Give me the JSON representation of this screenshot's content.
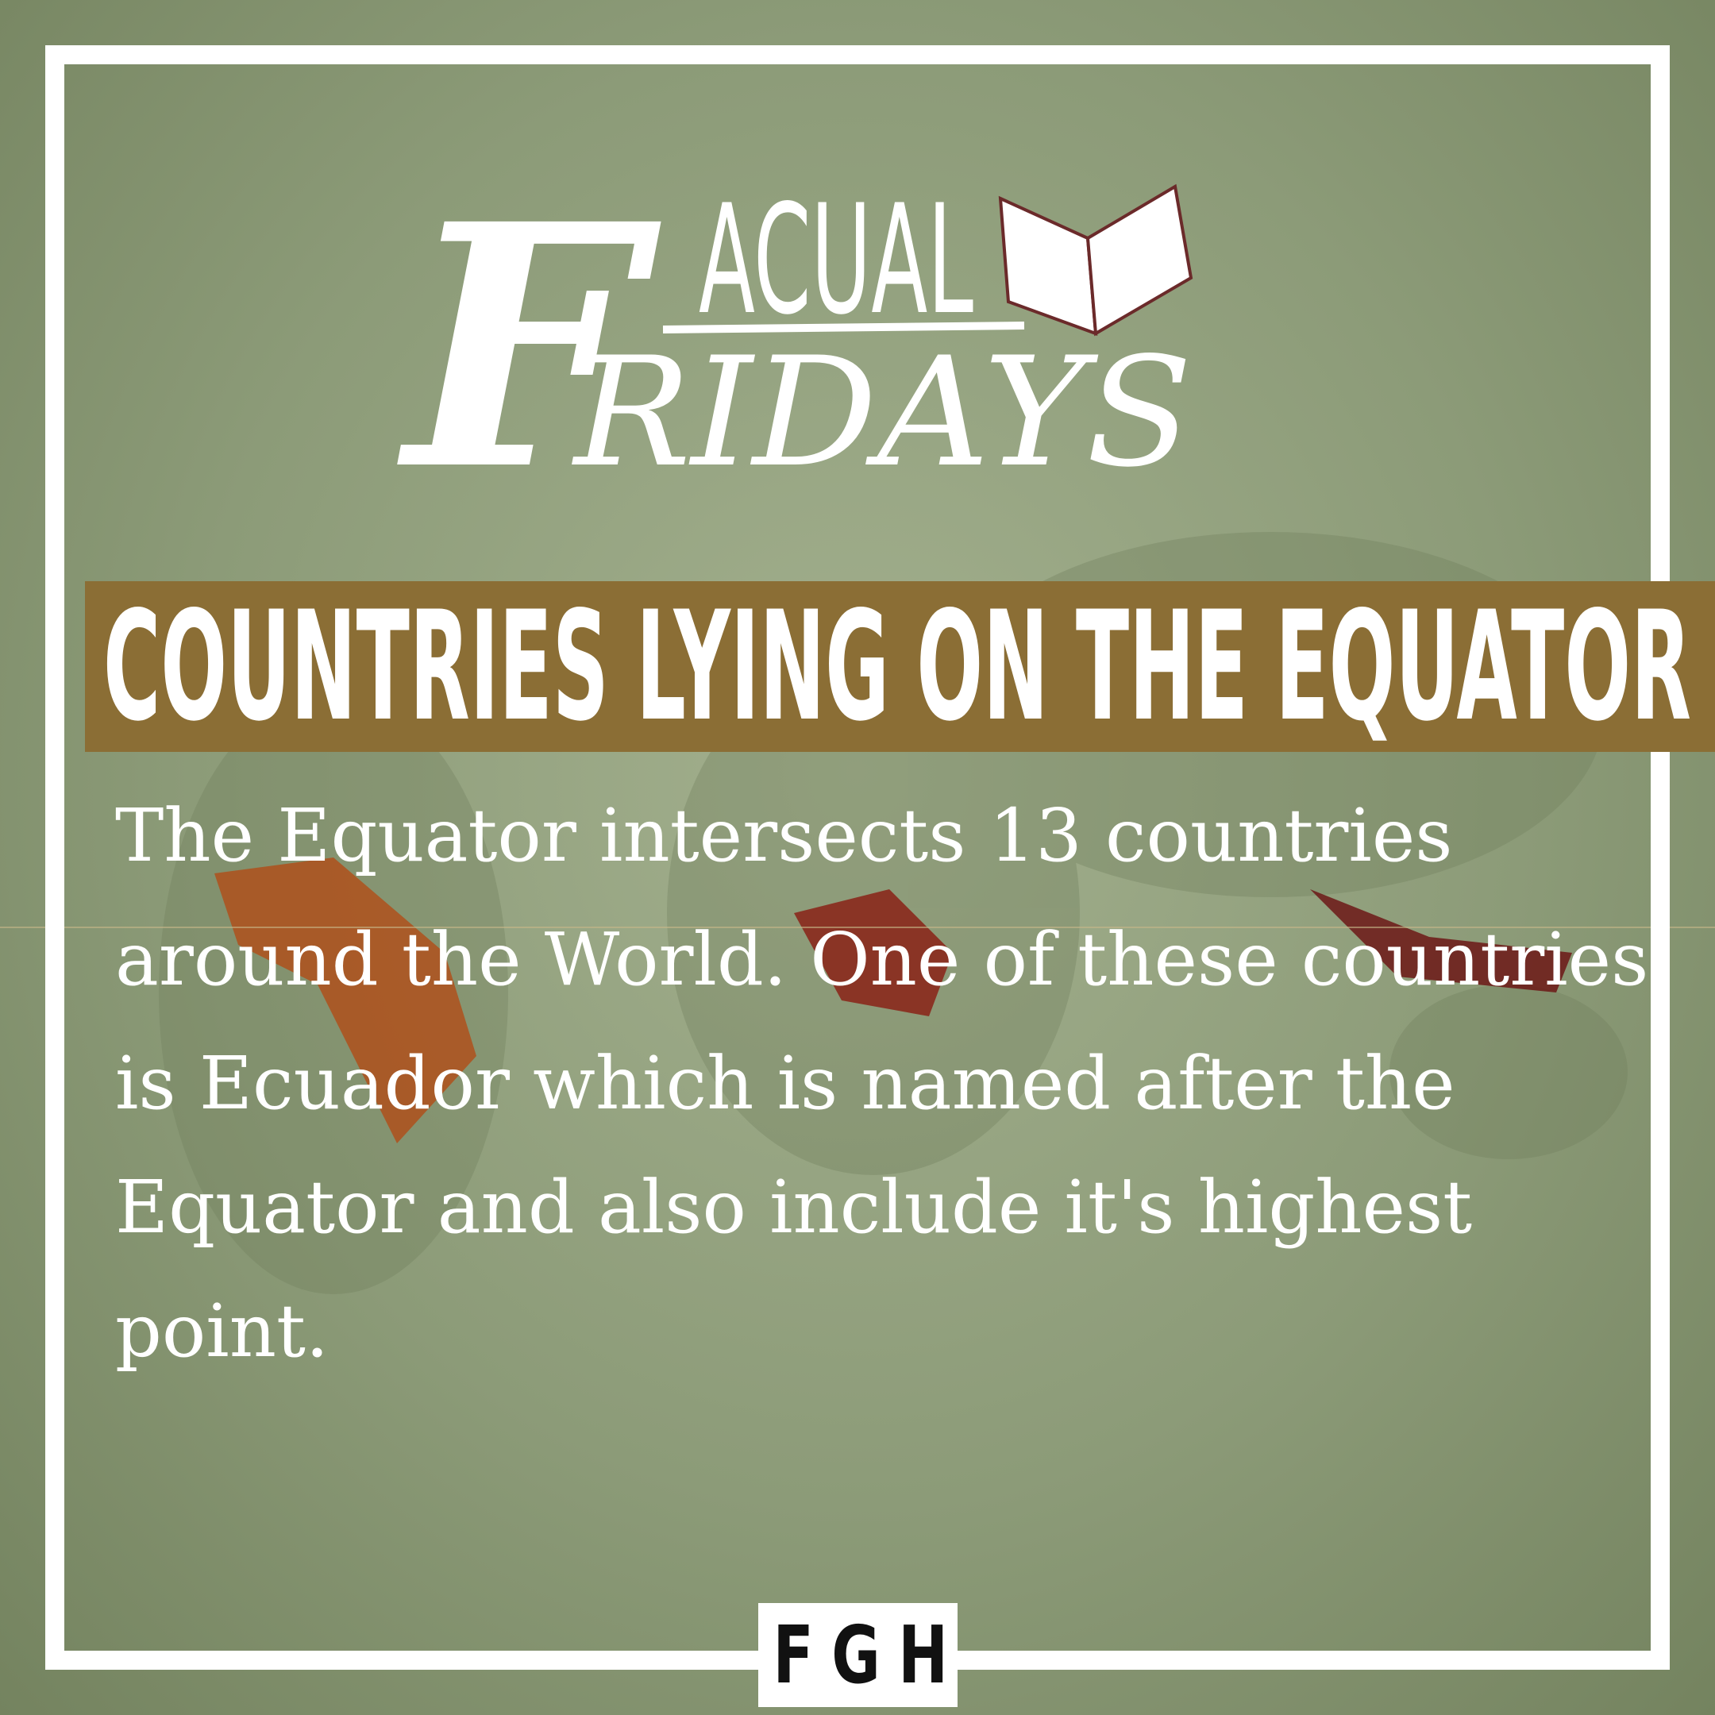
{
  "logo": {
    "initial": "F",
    "top": "ACUAL",
    "bottom": "RIDAYS"
  },
  "heading": "COUNTRIES LYING ON THE EQUATOR",
  "body": "The Equator intersects 13 countries around the World. One of these countries is Ecuador which is named after the Equator and also include it's highest point.",
  "footer": "FGH"
}
